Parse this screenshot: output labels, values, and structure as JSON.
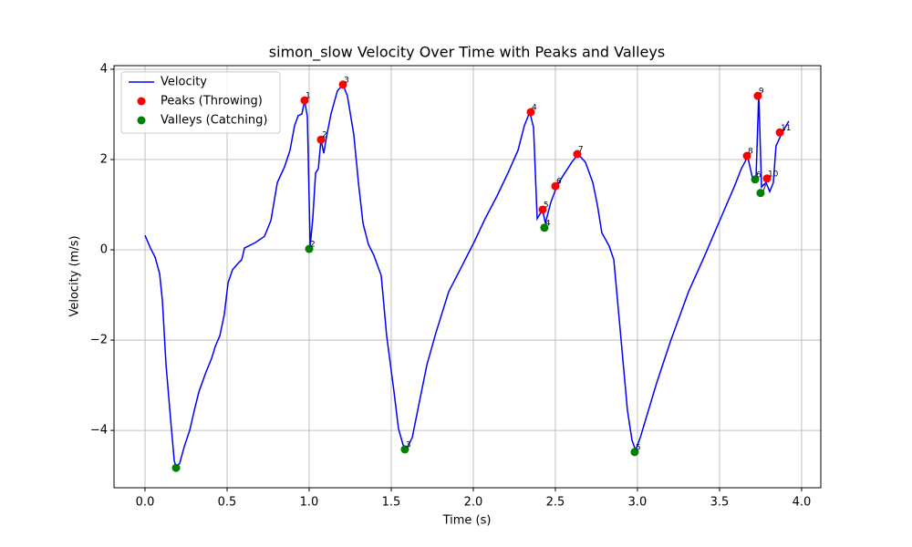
{
  "chart_data": {
    "type": "line",
    "title": "simon_slow Velocity Over Time with Peaks and Valleys",
    "xlabel": "Time (s)",
    "ylabel": "Velocity (m/s)",
    "xlim": [
      -0.189,
      4.117
    ],
    "ylim": [
      -5.27,
      4.08
    ],
    "xticks": [
      {
        "value": 0,
        "label": "0.0"
      },
      {
        "value": 0.5,
        "label": "0.5"
      },
      {
        "value": 1,
        "label": "1.0"
      },
      {
        "value": 1.5,
        "label": "1.5"
      },
      {
        "value": 2,
        "label": "2.0"
      },
      {
        "value": 2.5,
        "label": "2.5"
      },
      {
        "value": 3,
        "label": "3.0"
      },
      {
        "value": 3.5,
        "label": "3.5"
      },
      {
        "value": 4,
        "label": "4.0"
      }
    ],
    "yticks": [
      {
        "value": -4,
        "label": "−4"
      },
      {
        "value": -2,
        "label": "−2"
      },
      0,
      2,
      4
    ],
    "grid": true,
    "legend": "upper left",
    "series": [
      {
        "name": "Velocity",
        "type": "line",
        "color": "#0000ff",
        "x": [
          0,
          0.033,
          0.061,
          0.089,
          0.106,
          0.128,
          0.156,
          0.178,
          0.189,
          0.211,
          0.239,
          0.272,
          0.3,
          0.328,
          0.367,
          0.406,
          0.428,
          0.456,
          0.483,
          0.506,
          0.533,
          0.572,
          0.589,
          0.606,
          0.672,
          0.728,
          0.767,
          0.806,
          0.85,
          0.883,
          0.911,
          0.933,
          0.956,
          0.972,
          0.989,
          1.006,
          1.022,
          1.039,
          1.056,
          1.072,
          1.089,
          1.106,
          1.133,
          1.172,
          1.206,
          1.233,
          1.272,
          1.3,
          1.328,
          1.361,
          1.394,
          1.439,
          1.472,
          1.517,
          1.544,
          1.572,
          1.594,
          1.628,
          1.661,
          1.717,
          1.772,
          1.85,
          1.922,
          2.006,
          2.072,
          2.144,
          2.211,
          2.272,
          2.311,
          2.344,
          2.367,
          2.389,
          2.422,
          2.439,
          2.472,
          2.511,
          2.55,
          2.6,
          2.639,
          2.683,
          2.728,
          2.756,
          2.783,
          2.828,
          2.856,
          2.894,
          2.939,
          2.967,
          2.989,
          3.017,
          3.05,
          3.117,
          3.2,
          3.311,
          3.406,
          3.506,
          3.589,
          3.633,
          3.672,
          3.7,
          3.722,
          3.739,
          3.756,
          3.783,
          3.806,
          3.828,
          3.844,
          3.878,
          3.922
        ],
        "values": [
          0.32,
          0.04,
          -0.16,
          -0.53,
          -1.13,
          -2.55,
          -3.76,
          -4.67,
          -4.81,
          -4.73,
          -4.36,
          -4.0,
          -3.56,
          -3.15,
          -2.75,
          -2.4,
          -2.14,
          -1.9,
          -1.43,
          -0.73,
          -0.44,
          -0.28,
          -0.22,
          0.04,
          0.16,
          0.3,
          0.65,
          1.49,
          1.84,
          2.2,
          2.75,
          2.97,
          3.01,
          3.31,
          2.95,
          0.08,
          0.69,
          1.7,
          1.8,
          2.44,
          2.14,
          2.51,
          3.01,
          3.52,
          3.66,
          3.41,
          2.55,
          1.49,
          0.59,
          0.12,
          -0.12,
          -0.57,
          -1.9,
          -3.15,
          -3.96,
          -4.32,
          -4.4,
          -4.16,
          -3.56,
          -2.55,
          -1.84,
          -0.93,
          -0.42,
          0.18,
          0.69,
          1.19,
          1.7,
          2.2,
          2.75,
          3.05,
          2.71,
          0.69,
          0.89,
          0.59,
          1.05,
          1.43,
          1.66,
          1.94,
          2.12,
          1.94,
          1.49,
          0.99,
          0.38,
          0.08,
          -0.22,
          -1.74,
          -3.56,
          -4.22,
          -4.44,
          -4.16,
          -3.76,
          -2.95,
          -2.04,
          -0.93,
          -0.16,
          0.69,
          1.39,
          1.8,
          2.06,
          1.6,
          1.54,
          3.45,
          1.39,
          1.49,
          1.29,
          1.49,
          2.3,
          2.57,
          2.85
        ]
      },
      {
        "name": "Peaks (Throwing)",
        "type": "scatter",
        "color": "#ff0000",
        "x": [
          0.972,
          1.072,
          1.206,
          2.35,
          2.422,
          2.5,
          2.633,
          3.667,
          3.733,
          3.789,
          3.867
        ],
        "values": [
          3.31,
          2.44,
          3.66,
          3.05,
          0.89,
          1.41,
          2.12,
          2.08,
          3.41,
          1.58,
          2.6
        ],
        "labels": [
          "1",
          "2",
          "3",
          "4",
          "5",
          "6",
          "7",
          "8",
          "9",
          "10",
          "11"
        ]
      },
      {
        "name": "Valleys (Catching)",
        "type": "scatter",
        "color": "#008000",
        "x": [
          0.189,
          1.0,
          1.583,
          2.433,
          2.983,
          3.717,
          3.75
        ],
        "values": [
          -4.83,
          0.02,
          -4.42,
          0.49,
          -4.48,
          1.56,
          1.26
        ],
        "labels": [
          null,
          "2",
          "3",
          "4",
          "5",
          "6",
          "7"
        ]
      }
    ]
  }
}
